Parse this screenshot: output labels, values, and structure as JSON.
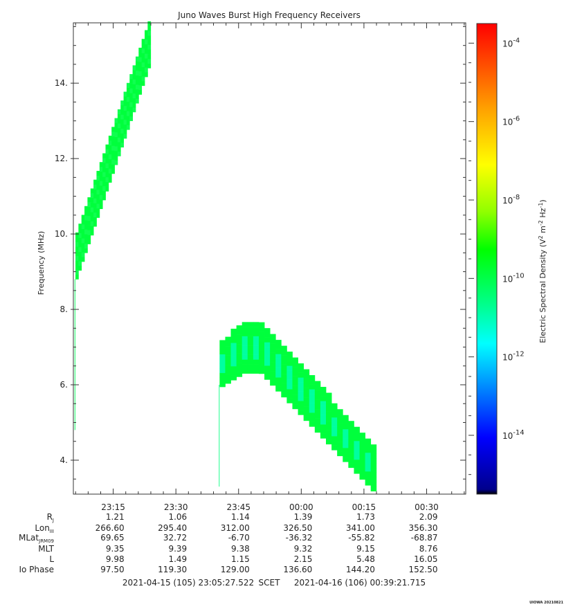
{
  "chart_data": {
    "type": "heatmap",
    "title": "Juno Waves Burst High Frequency Receivers",
    "ylabel": "Frequency (MHz)",
    "ylim": [
      3.1,
      15.6
    ],
    "y_ticks": [
      4.0,
      6.0,
      8.0,
      10.0,
      12.0,
      14.0
    ],
    "y_tick_labels": [
      "4.",
      "6.",
      "8.",
      "10.",
      "12.",
      "14."
    ],
    "x_ticks": [
      "23:15",
      "23:30",
      "23:45",
      "00:00",
      "00:15",
      "00:30"
    ],
    "x_range_minutes": [
      0,
      93.9
    ],
    "x_tick_minutes": [
      9.54,
      24.54,
      39.54,
      54.54,
      69.54,
      84.54
    ],
    "x_start_label": "2021-04-15 (105) 23:05:27.522",
    "x_mid_label": "SCET",
    "x_end_label": "2021-04-16 (106) 00:39:21.715",
    "colorbar": {
      "label": "Electric Spectral Density (V² m⁻² Hz⁻¹)",
      "label_prefix": "Electric Spectral Density (V",
      "label_sup1": "2",
      "label_mid": " m",
      "label_sup2": "-2",
      "label_mid2": " Hz",
      "label_sup3": "-1",
      "label_suffix": ")",
      "log_min": -15.5,
      "log_max": -3.5,
      "ticks": [
        {
          "base": "10",
          "exp": "-4",
          "log": -4
        },
        {
          "base": "10",
          "exp": "-6",
          "log": -6
        },
        {
          "base": "10",
          "exp": "-8",
          "log": -8
        },
        {
          "base": "10",
          "exp": "-10",
          "log": -10
        },
        {
          "base": "10",
          "exp": "-12",
          "log": -12
        },
        {
          "base": "10",
          "exp": "-14",
          "log": -14
        }
      ]
    },
    "emission_upper_band": {
      "description_color": "#00ff40",
      "t_start_min": 0.5,
      "t_end_min": 18.5,
      "f_low_start": 8.8,
      "f_low_end": 14.4,
      "f_high_start": 10.0,
      "f_high_end": 15.6
    },
    "emission_lower_band": {
      "t_start_min": 35.0,
      "t_peak_min": 41.0,
      "t_end_min": 72.5,
      "f_peak": 7.6,
      "f_low_peak": 6.3,
      "f_end_high": 4.3,
      "f_end_low": 3.1
    },
    "ephemeris_rows": [
      {
        "label": "R",
        "sub": "J",
        "values": [
          "1.21",
          "1.06",
          "1.14",
          "1.39",
          "1.73",
          "2.09"
        ]
      },
      {
        "label": "Lon",
        "sub": "III",
        "values": [
          "266.60",
          "295.40",
          "312.00",
          "326.50",
          "341.00",
          "356.30"
        ]
      },
      {
        "label": "MLat",
        "sub": "JRM09",
        "values": [
          "69.65",
          "32.72",
          "-6.70",
          "-36.32",
          "-55.82",
          "-68.87"
        ]
      },
      {
        "label": "MLT",
        "sub": "",
        "values": [
          "9.35",
          "9.39",
          "9.38",
          "9.32",
          "9.15",
          "8.76"
        ]
      },
      {
        "label": "L",
        "sub": "",
        "values": [
          "9.98",
          "1.49",
          "1.15",
          "2.15",
          "5.48",
          "16.05"
        ]
      },
      {
        "label": "Io Phase",
        "sub": "",
        "values": [
          "97.50",
          "119.30",
          "129.00",
          "136.60",
          "144.20",
          "152.50"
        ]
      }
    ],
    "watermark": "UIOWA 20210821"
  }
}
